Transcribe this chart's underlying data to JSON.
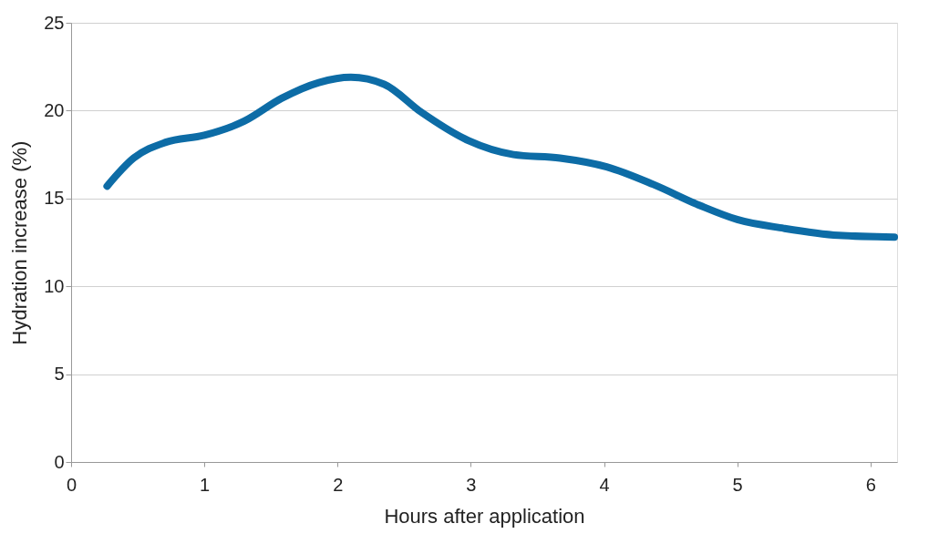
{
  "chart_data": {
    "type": "line",
    "xlabel": "Hours after application",
    "ylabel": "Hydration increase (%)",
    "x": [
      0.27,
      0.47,
      0.71,
      1.0,
      1.3,
      1.58,
      1.86,
      2.1,
      2.35,
      2.63,
      2.98,
      3.32,
      3.67,
      4.02,
      4.37,
      4.72,
      5.0,
      5.35,
      5.76,
      6.18
    ],
    "series": [
      {
        "color": "#0d6ca6",
        "values": [
          15.7,
          17.3,
          18.2,
          18.6,
          19.4,
          20.7,
          21.6,
          21.9,
          21.5,
          19.9,
          18.3,
          17.5,
          17.3,
          16.8,
          15.8,
          14.6,
          13.8,
          13.3,
          12.9,
          12.8
        ]
      }
    ],
    "xlim": [
      0,
      6.2
    ],
    "xticks": [
      0,
      1,
      2,
      3,
      4,
      5,
      6
    ],
    "ylim": [
      0,
      25
    ],
    "yticks": [
      0,
      5,
      10,
      15,
      20,
      25
    ],
    "grid": "y"
  }
}
